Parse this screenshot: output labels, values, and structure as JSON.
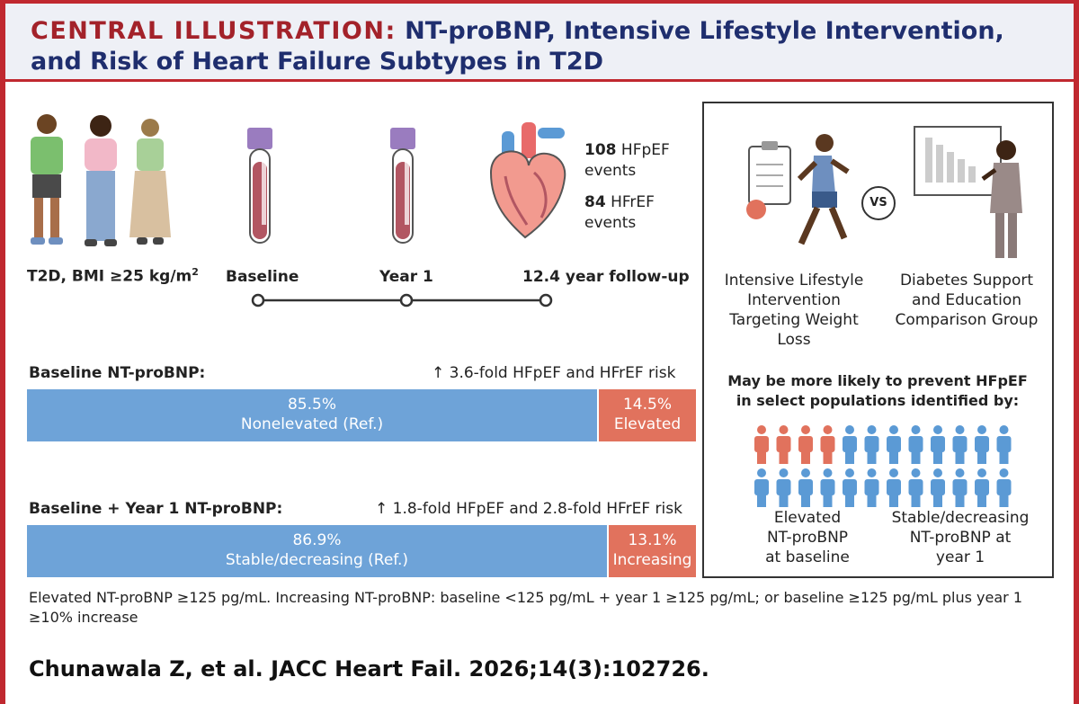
{
  "header": {
    "title_lead": "CENTRAL ILLUSTRATION:",
    "title_line1": " NT-proBNP, Intensive Lifestyle Intervention,",
    "title_line2": "and Risk of Heart Failure Subtypes in T2D"
  },
  "population": {
    "label": "T2D, BMI ≥25 kg/m",
    "superscript": "2"
  },
  "timeline": {
    "baseline": "Baseline",
    "year1": "Year 1",
    "followup": "12.4 year follow-up"
  },
  "events": {
    "hfpef_count": "108",
    "hfpef_label": "HFpEF",
    "hfpef_suffix": "events",
    "hfref_count": "84",
    "hfref_label": "HFrEF",
    "hfref_suffix": "events"
  },
  "baseline_section": {
    "label": "Baseline NT-proBNP:",
    "risk": "↑ 3.6-fold HFpEF and HFrEF risk",
    "left_pct": "85.5%",
    "left_label": "Nonelevated  (Ref.)",
    "right_pct": "14.5%",
    "right_label": "Elevated",
    "left_value": 85.5,
    "right_value": 14.5
  },
  "year1_section": {
    "label": "Baseline + Year 1 NT-proBNP:",
    "risk": "↑ 1.8-fold HFpEF and 2.8-fold HFrEF risk",
    "left_pct": "86.9%",
    "left_label": "Stable/decreasing (Ref.)",
    "right_pct": "13.1%",
    "right_label": "Increasing",
    "left_value": 86.9,
    "right_value": 13.1
  },
  "panel": {
    "vs": "VS",
    "ili_line1": "Intensive Lifestyle",
    "ili_line2": "Intervention",
    "ili_line3": "Targeting Weight Loss",
    "dse_line1": "Diabetes Support",
    "dse_line2": "and Education",
    "dse_line3": "Comparison Group",
    "prevent_line1": "May be more likely to prevent HFpEF",
    "prevent_line2": "in select populations identified by:",
    "elev_line1": "Elevated",
    "elev_line2": "NT-proBNP",
    "elev_line3": "at baseline",
    "stable_line1": "Stable/decreasing",
    "stable_line2": "NT-proBNP at",
    "stable_line3": "year 1"
  },
  "footnote": "Elevated NT-proBNP ≥125 pg/mL. Increasing NT-proBNP: baseline <125 pg/mL + year 1 ≥125 pg/mL; or baseline ≥125 pg/mL plus year 1 ≥10% increase",
  "citation": "Chunawala Z, et al. JACC Heart Fail. 2026;14(3):102726.",
  "colors": {
    "brand_red": "#c0282f",
    "title_blue": "#1f2e6e",
    "bar_blue": "#6ea3d8",
    "bar_red": "#e1725d",
    "person_red": "#e1725d",
    "person_blue": "#5b9ad5"
  },
  "icon_grid": {
    "rows": 2,
    "per_row": 12,
    "highlighted_in_first_row": 4
  }
}
